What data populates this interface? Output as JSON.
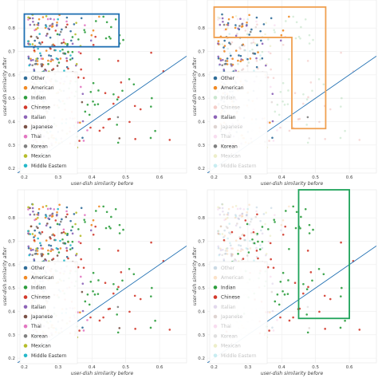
{
  "chart_data": [
    {
      "type": "scatter",
      "title": "",
      "xlabel": "user-dish similarity before",
      "ylabel": "user-dish similarity after",
      "xlim": [
        0.18,
        0.68
      ],
      "ylim": [
        0.18,
        0.92
      ],
      "x_ticks": [
        "0.2",
        "0.3",
        "0.4",
        "0.5",
        "0.6"
      ],
      "y_ticks": [
        "0.2",
        "0.3",
        "0.4",
        "0.5",
        "0.6",
        "0.7",
        "0.8"
      ],
      "highlighted_series": [
        "Other",
        "American",
        "Indian",
        "Chinese",
        "Italian",
        "Japanese",
        "Thai",
        "Korean",
        "Mexican",
        "Middle Eastern"
      ],
      "box": {
        "color": "#1f6fb2",
        "x": [
          0.2,
          0.48
        ],
        "y": [
          0.72,
          0.86
        ]
      },
      "legend_position": "bottom-left",
      "diagonal": "y = x"
    },
    {
      "type": "scatter",
      "title": "",
      "xlabel": "user-dish similarity before",
      "ylabel": "user-dish similarity after",
      "xlim": [
        0.18,
        0.68
      ],
      "ylim": [
        0.18,
        0.92
      ],
      "x_ticks": [
        "0.2",
        "0.3",
        "0.4",
        "0.5",
        "0.6"
      ],
      "y_ticks": [
        "0.2",
        "0.3",
        "0.4",
        "0.5",
        "0.6",
        "0.7",
        "0.8"
      ],
      "highlighted_series": [
        "Other",
        "American",
        "Italian",
        "Korean"
      ],
      "box": {
        "color": "#f0a050",
        "x": [
          0.2,
          0.53
        ],
        "y": [
          0.37,
          0.89
        ],
        "shape": "L",
        "inner_x": 0.43,
        "inner_y": 0.76
      },
      "legend_position": "bottom-left",
      "diagonal": "y = x"
    },
    {
      "type": "scatter",
      "title": "",
      "xlabel": "user-dish similarity before",
      "ylabel": "user-dish similarity after",
      "xlim": [
        0.18,
        0.68
      ],
      "ylim": [
        0.18,
        0.92
      ],
      "x_ticks": [
        "0.2",
        "0.3",
        "0.4",
        "0.5",
        "0.6"
      ],
      "y_ticks": [
        "0.2",
        "0.3",
        "0.4",
        "0.5",
        "0.6",
        "0.7",
        "0.8"
      ],
      "highlighted_series": [
        "Other",
        "American",
        "Indian",
        "Chinese",
        "Italian",
        "Japanese",
        "Thai",
        "Korean",
        "Mexican",
        "Middle Eastern"
      ],
      "box": null,
      "legend_position": "bottom-left",
      "diagonal": "y = x"
    },
    {
      "type": "scatter",
      "title": "",
      "xlabel": "user-dish similarity before",
      "ylabel": "user-dish similarity after",
      "xlim": [
        0.18,
        0.68
      ],
      "ylim": [
        0.18,
        0.92
      ],
      "x_ticks": [
        "0.2",
        "0.3",
        "0.4",
        "0.5",
        "0.6"
      ],
      "y_ticks": [
        "0.2",
        "0.3",
        "0.4",
        "0.5",
        "0.6",
        "0.7",
        "0.8"
      ],
      "highlighted_series": [
        "Indian",
        "Chinese"
      ],
      "box": {
        "color": "#1fa35a",
        "x": [
          0.45,
          0.6
        ],
        "y": [
          0.37,
          0.92
        ]
      },
      "legend_position": "bottom-left",
      "diagonal": "y = x"
    }
  ],
  "legend": [
    {
      "name": "Other",
      "color": "#2f6d99"
    },
    {
      "name": "American",
      "color": "#f08a24"
    },
    {
      "name": "Indian",
      "color": "#2e9e3e"
    },
    {
      "name": "Chinese",
      "color": "#d33a2c"
    },
    {
      "name": "Italian",
      "color": "#8d64b8"
    },
    {
      "name": "Japanese",
      "color": "#7a5246"
    },
    {
      "name": "Thai",
      "color": "#e377c2"
    },
    {
      "name": "Korean",
      "color": "#7f7f7f"
    },
    {
      "name": "Mexican",
      "color": "#b6bd2b"
    },
    {
      "name": "Middle Eastern",
      "color": "#25b8c9"
    }
  ]
}
